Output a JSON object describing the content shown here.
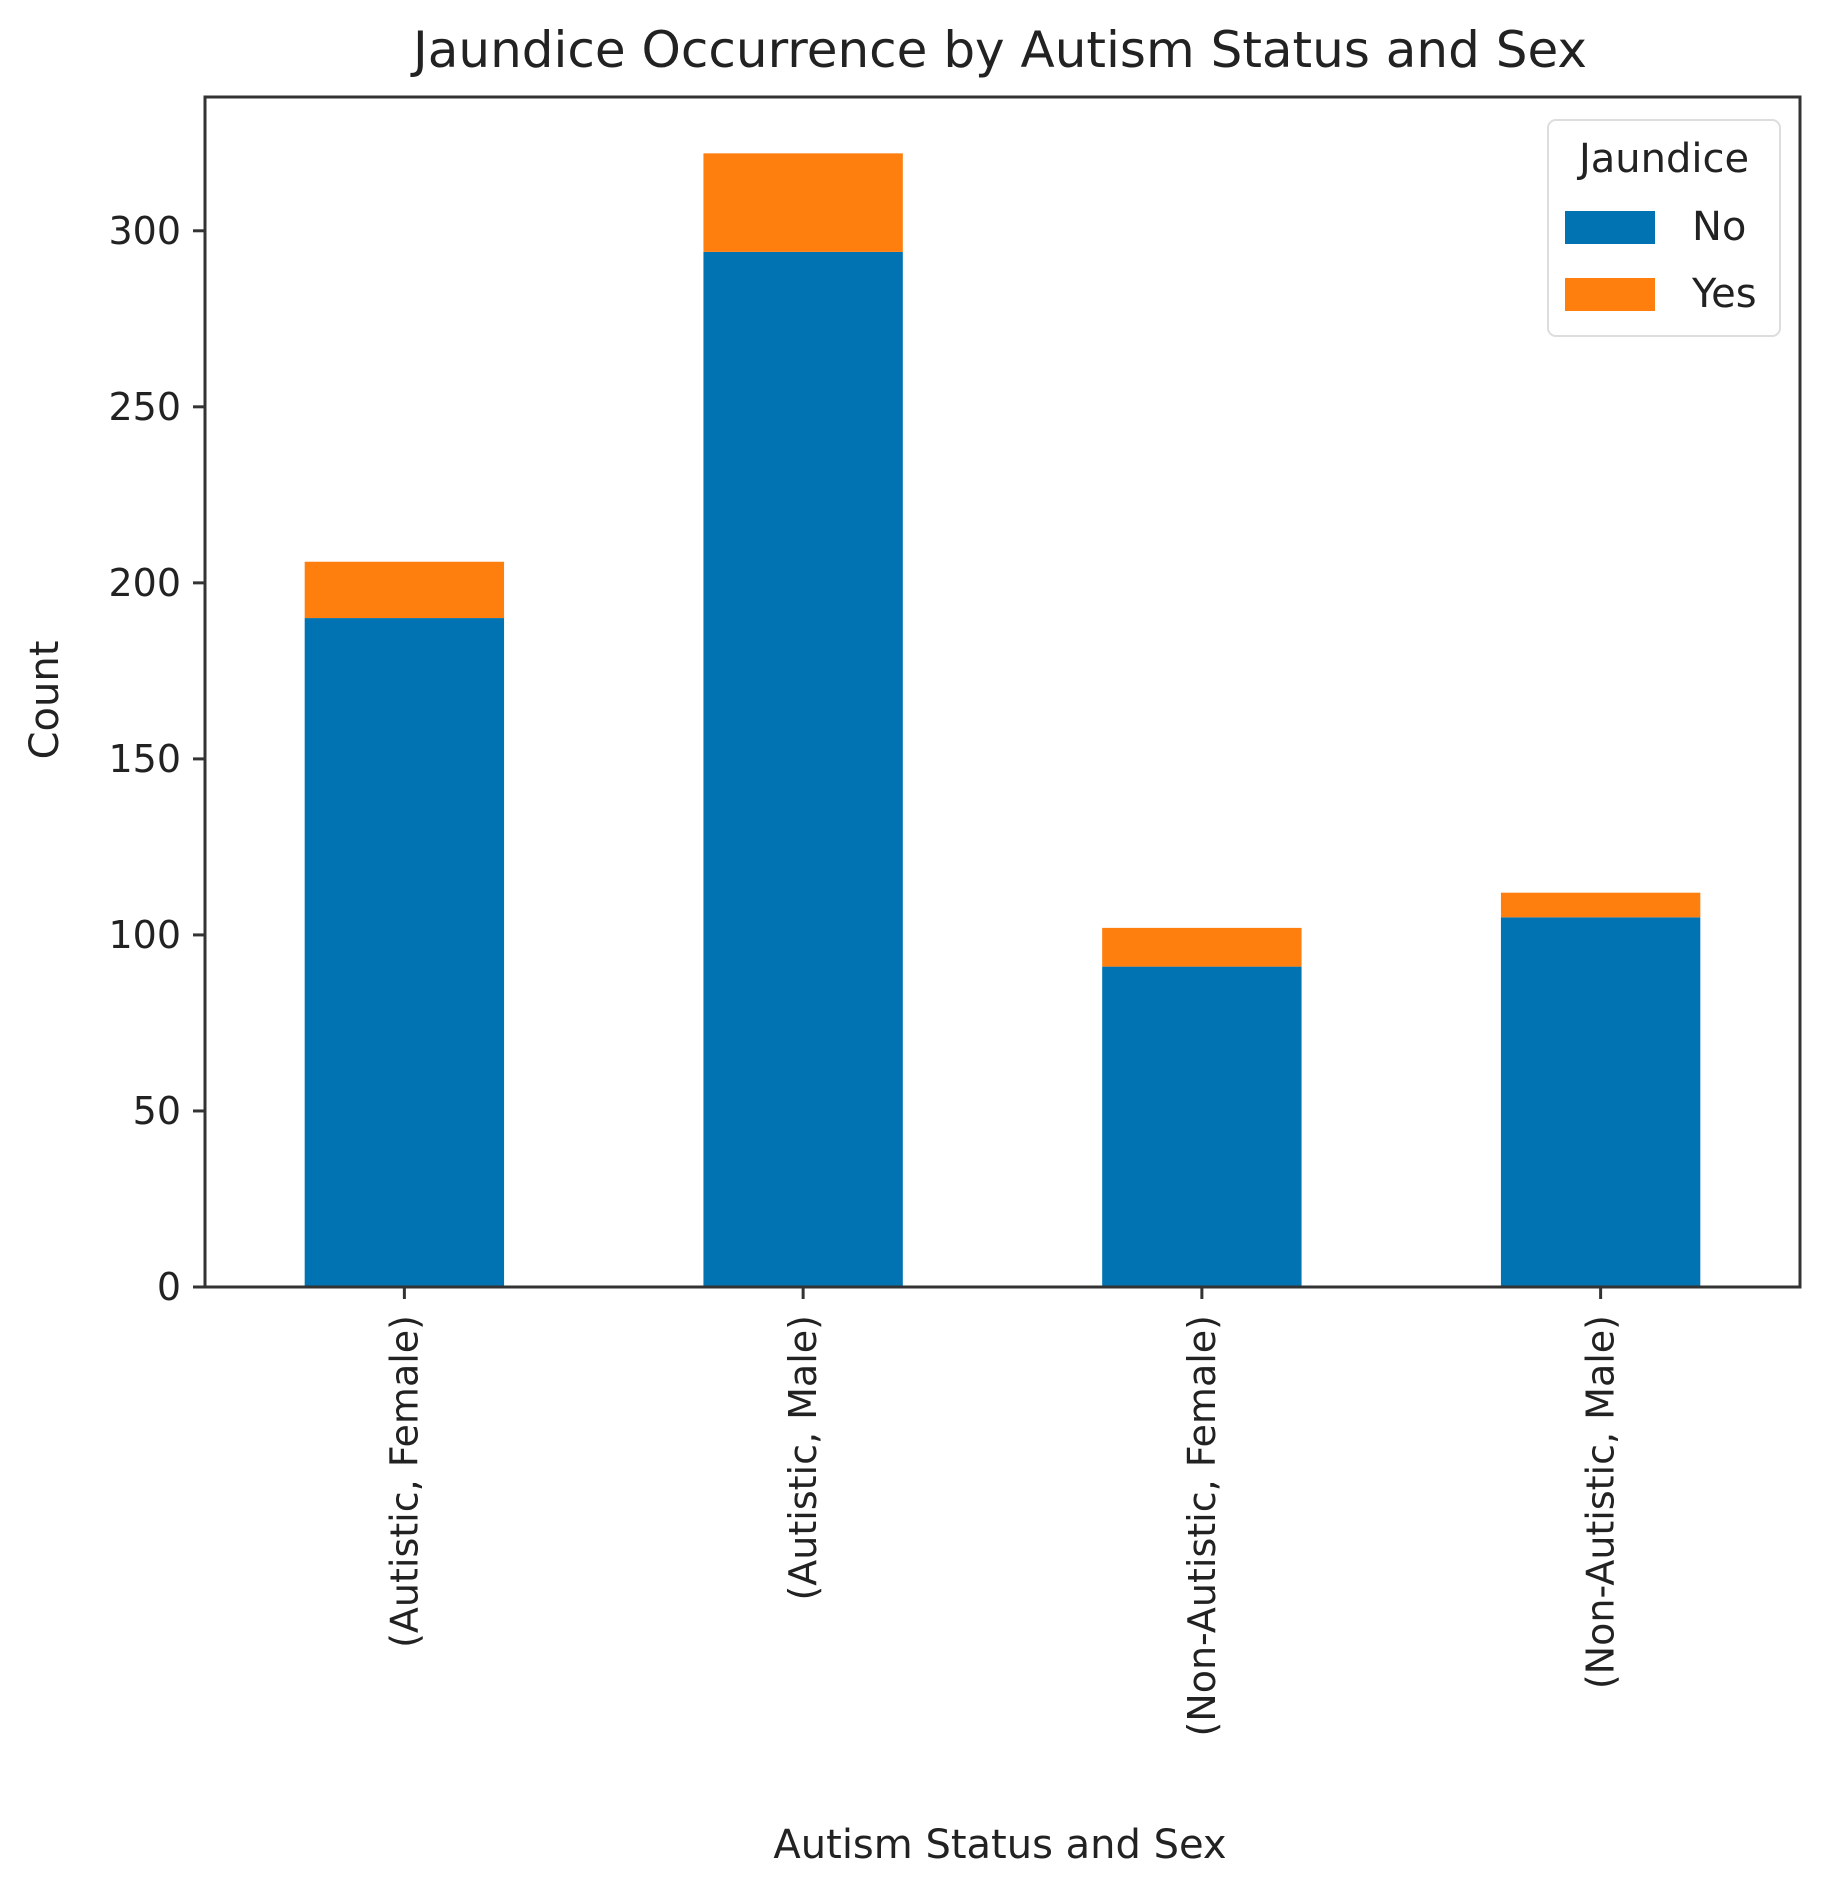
{
  "chart_data": {
    "type": "bar",
    "stacked": true,
    "title": "Jaundice Occurrence by Autism Status and Sex",
    "xlabel": "Autism Status and Sex",
    "ylabel": "Count",
    "categories": [
      "(Autistic, Female)",
      "(Autistic, Male)",
      "(Non-Autistic, Female)",
      "(Non-Autistic, Male)"
    ],
    "series": [
      {
        "name": "No",
        "color": "#0173b2",
        "values": [
          190,
          294,
          91,
          105
        ]
      },
      {
        "name": "Yes",
        "color": "#ff7f0e",
        "values": [
          16,
          28,
          11,
          7
        ]
      }
    ],
    "ylim": [
      0,
      338
    ],
    "yticks": [
      0,
      50,
      100,
      150,
      200,
      250,
      300
    ],
    "grid": false,
    "legend": {
      "title": "Jaundice",
      "placement": "top-right"
    }
  }
}
